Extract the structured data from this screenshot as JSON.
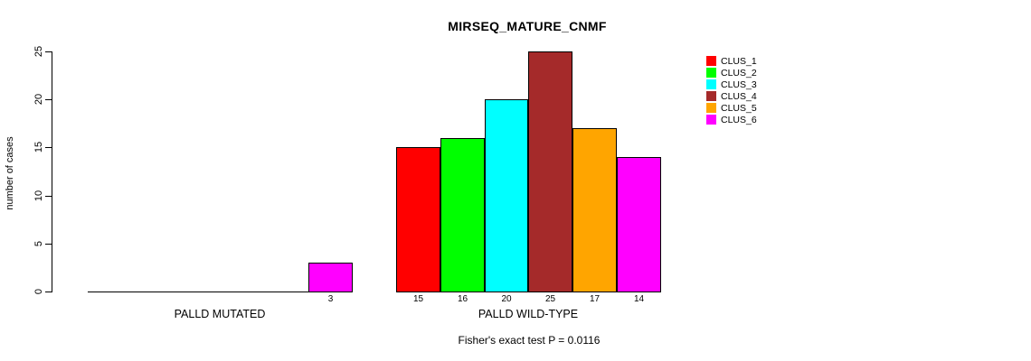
{
  "chart_data": {
    "type": "bar",
    "title": "MIRSEQ_MATURE_CNMF",
    "xlabel": "",
    "ylabel": "number of cases",
    "ylim": [
      0,
      25
    ],
    "yticks": [
      0,
      5,
      10,
      15,
      20,
      25
    ],
    "grid": false,
    "legend_position": "right",
    "categories": [
      "CLUS_1",
      "CLUS_2",
      "CLUS_3",
      "CLUS_4",
      "CLUS_5",
      "CLUS_6"
    ],
    "series_colors": [
      "#FF0000",
      "#00FF00",
      "#00FFFF",
      "#A52A2A",
      "#FFA500",
      "#FF00FF"
    ],
    "groups": [
      {
        "label": "PALLD MUTATED",
        "values": [
          0,
          0,
          0,
          0,
          0,
          3
        ]
      },
      {
        "label": "PALLD WILD-TYPE",
        "values": [
          15,
          16,
          20,
          25,
          17,
          14
        ]
      }
    ],
    "legend": [
      {
        "label": "CLUS_1",
        "color": "#FF0000"
      },
      {
        "label": "CLUS_2",
        "color": "#00FF00"
      },
      {
        "label": "CLUS_3",
        "color": "#00FFFF"
      },
      {
        "label": "CLUS_4",
        "color": "#A52A2A"
      },
      {
        "label": "CLUS_5",
        "color": "#FFA500"
      },
      {
        "label": "CLUS_6",
        "color": "#FF00FF"
      }
    ],
    "annotation": "Fisher's exact test P = 0.0116",
    "bar_value_labels": true
  }
}
